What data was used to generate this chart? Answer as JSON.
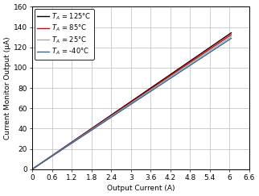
{
  "title": "",
  "xlabel": "Output Current (A)",
  "ylabel": "Current Monitor Output (µA)",
  "xlim": [
    0,
    6.6
  ],
  "ylim": [
    0,
    160
  ],
  "xtick_vals": [
    0,
    0.6,
    1.2,
    1.8,
    2.4,
    3.0,
    3.6,
    4.2,
    4.8,
    5.4,
    6.0,
    6.6
  ],
  "xtick_labels": [
    "0",
    "0.6",
    "1.2",
    "1.8",
    "2.4",
    "3",
    "3.6",
    "4.2",
    "4.8",
    "5.4",
    "6",
    "6.6"
  ],
  "yticks": [
    0,
    20,
    40,
    60,
    80,
    100,
    120,
    140,
    160
  ],
  "legend": [
    {
      "label": "$T_A$ = 125°C",
      "color": "#000000",
      "lw": 1.0
    },
    {
      "label": "$T_A$ = 85°C",
      "color": "#dd0000",
      "lw": 1.0
    },
    {
      "label": "$T_A$ = 25°C",
      "color": "#aaaaaa",
      "lw": 1.0
    },
    {
      "label": "$T_A$ = -40°C",
      "color": "#336699",
      "lw": 1.0
    }
  ],
  "slopes": [
    22.2,
    21.9,
    21.6,
    21.3
  ],
  "x_start": 0.0,
  "x_end": 6.05,
  "background_color": "#ffffff",
  "grid_color": "#bbbbbb",
  "font_size": 6.5
}
